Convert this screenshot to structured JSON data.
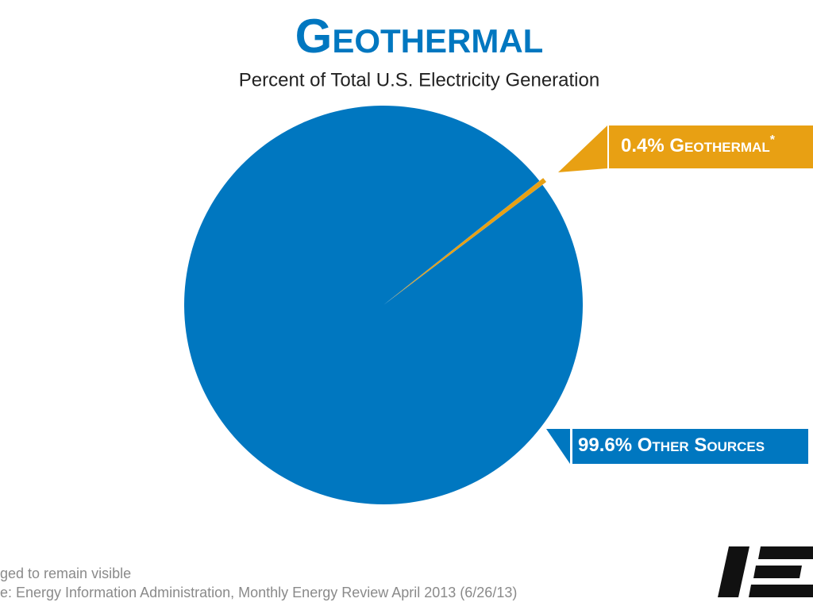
{
  "chart_data": {
    "type": "pie",
    "title": "Geothermal",
    "subtitle": "Percent of Total U.S. Electricity Generation",
    "categories": [
      "Geothermal",
      "Other Sources"
    ],
    "values": [
      0.4,
      99.6
    ],
    "value_labels": [
      "0.4%",
      "99.6%"
    ],
    "colors": [
      "#e8a013",
      "#0077c0"
    ],
    "marker": "*",
    "footnotes": [
      "ged to remain visible",
      "e: Energy Information Administration, Monthly Energy Review April 2013 (6/26/13)"
    ]
  }
}
